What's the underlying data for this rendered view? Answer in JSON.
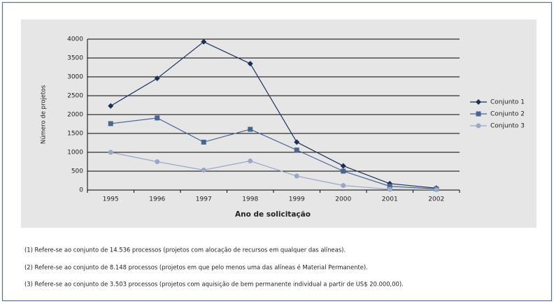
{
  "chart_data": {
    "type": "line",
    "xlabel": "Ano de solicitação",
    "ylabel": "Número de projetos",
    "categories": [
      "1995",
      "1996",
      "1997",
      "1998",
      "1999",
      "2000",
      "2001",
      "2002"
    ],
    "series": [
      {
        "name": "Conjunto 1",
        "color": "#1a2f5a",
        "marker": "diamond",
        "values": [
          2230,
          2960,
          3930,
          3350,
          1270,
          640,
          170,
          50
        ]
      },
      {
        "name": "Conjunto 2",
        "color": "#4a6590",
        "marker": "square",
        "values": [
          1760,
          1910,
          1270,
          1610,
          1060,
          500,
          100,
          30
        ]
      },
      {
        "name": "Conjunto 3",
        "color": "#9aa8c8",
        "marker": "circle",
        "values": [
          1000,
          750,
          530,
          770,
          370,
          120,
          20,
          10
        ]
      }
    ],
    "ylim": [
      0,
      4000
    ],
    "yticks": [
      0,
      500,
      1000,
      1500,
      2000,
      2500,
      3000,
      3500,
      4000
    ],
    "grid": true,
    "legend": "right"
  },
  "footnotes": [
    "(1)  Refere-se ao conjunto de 14.536 processos (projetos com alocação de recursos em qualquer das alíneas).",
    "(2) Refere-se ao conjunto de 8.148 processos (projetos em que pelo menos uma das alíneas é Material Permanente).",
    "(3) Refere-se ao conjunto de 3.503 processos (projetos com aquisição de bem permanente individual a partir de US$ 20.000,00)."
  ]
}
